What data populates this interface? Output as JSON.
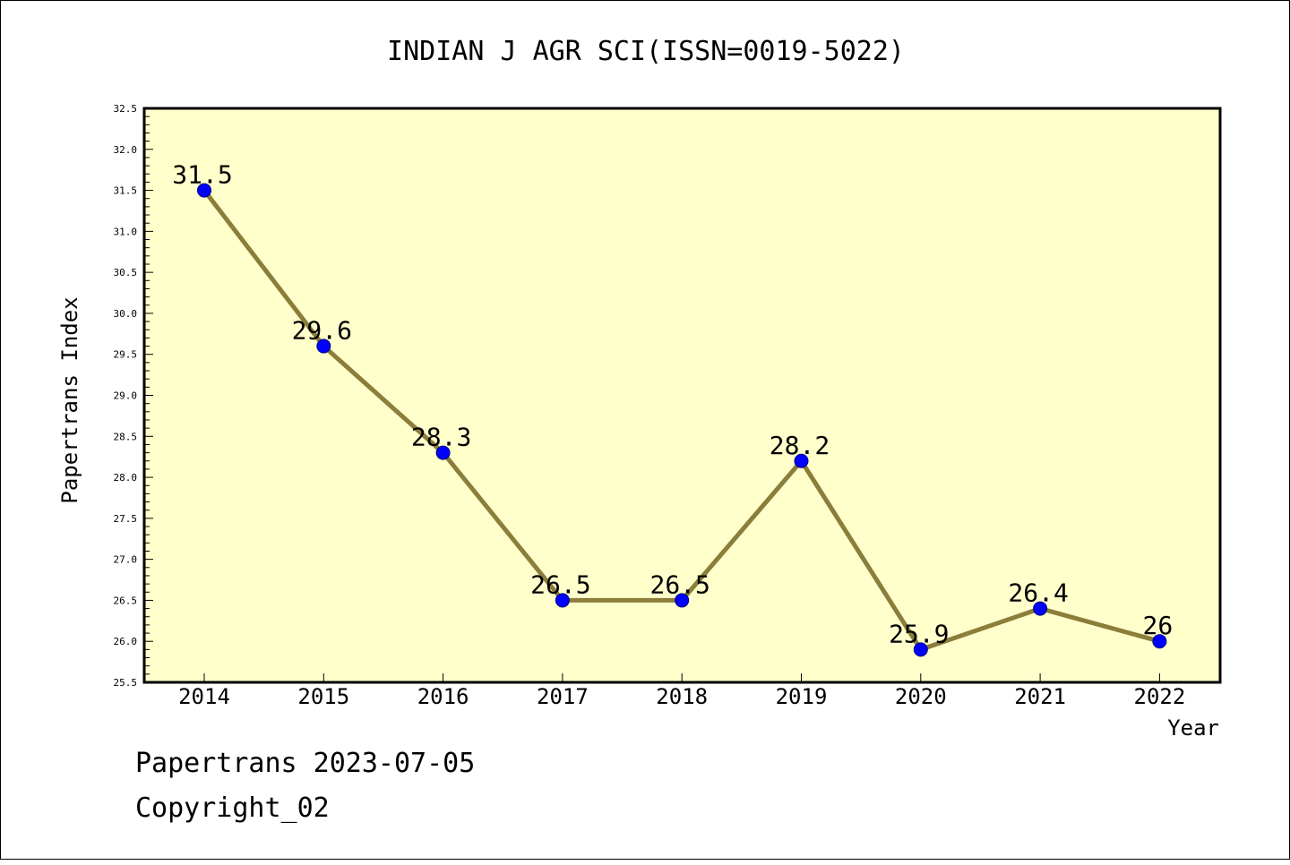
{
  "chart_data": {
    "type": "line",
    "title": "INDIAN J AGR SCI(ISSN=0019-5022)",
    "xlabel": "Year",
    "ylabel": "Papertrans Index",
    "categories": [
      "2014",
      "2015",
      "2016",
      "2017",
      "2018",
      "2019",
      "2020",
      "2021",
      "2022"
    ],
    "series": [
      {
        "values": [
          31.5,
          29.6,
          28.3,
          26.5,
          26.5,
          28.2,
          25.9,
          26.4,
          26.0
        ],
        "labels": [
          "31.5",
          "29.6",
          "28.3",
          "26.5",
          "26.5",
          "28.2",
          "25.9",
          "26.4",
          "26"
        ]
      }
    ],
    "ylim": [
      25.5,
      32.5
    ],
    "yticks": [
      "25.5",
      "26.0",
      "26.5",
      "27.0",
      "27.5",
      "28.0",
      "28.5",
      "29.0",
      "29.5",
      "30.0",
      "30.5",
      "31.0",
      "31.5",
      "32.0",
      "32.5"
    ],
    "grid": false,
    "legend": "none",
    "colors": {
      "plot_background": "#ffffcc",
      "line": "#8b7d3a",
      "marker": "#0000ff",
      "marker_edge": "#000080"
    }
  },
  "footer": {
    "line1": "Papertrans 2023-07-05",
    "line2": "Copyright_02"
  }
}
